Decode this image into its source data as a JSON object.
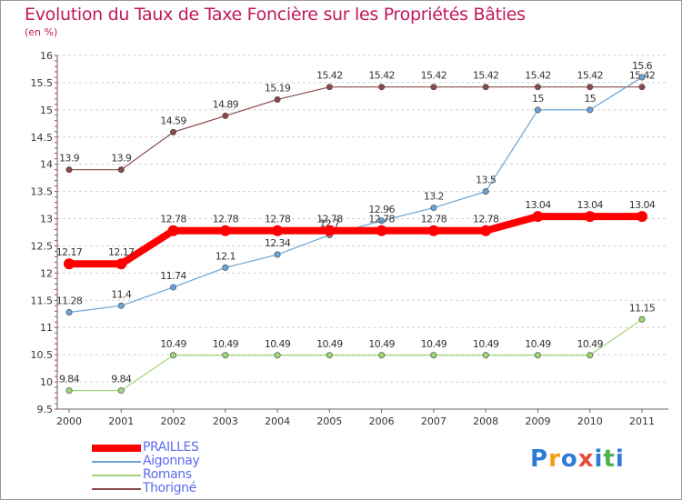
{
  "title": "Evolution du Taux de Taxe Foncière sur les Propriétés Bâties",
  "subtitle": "(en %)",
  "logo": {
    "letters": [
      "P",
      "r",
      "o",
      "x",
      "i",
      "t",
      "i"
    ],
    "colors": [
      "#2e7bd6",
      "#f39c12",
      "#2e7bd6",
      "#e74c3c",
      "#2e7bd6",
      "#4caf50",
      "#2e7bd6"
    ]
  },
  "chart_data": {
    "type": "line",
    "title": "Evolution du Taux de Taxe Foncière sur les Propriétés Bâties",
    "ylabel": "(en %)",
    "xlabel": "",
    "categories": [
      "2000",
      "2001",
      "2002",
      "2003",
      "2004",
      "2005",
      "2006",
      "2007",
      "2008",
      "2009",
      "2010",
      "2011"
    ],
    "ylim": [
      9.5,
      16
    ],
    "yticks": [
      "9.5",
      "10",
      "10.5",
      "11",
      "11.5",
      "12",
      "12.5",
      "13",
      "13.5",
      "14",
      "14.5",
      "15",
      "15.5",
      "16"
    ],
    "grid": "horizontal dashed",
    "series": [
      {
        "name": "PRAILLES",
        "color": "#ff0000",
        "width": 8,
        "values": [
          12.17,
          12.17,
          12.78,
          12.78,
          12.78,
          12.78,
          12.78,
          12.78,
          12.78,
          13.04,
          13.04,
          13.04
        ],
        "labels": [
          "12.17",
          "12.17",
          "12.78",
          "12.78",
          "12.78",
          "12.78",
          "12.78",
          "12.78",
          "12.78",
          "13.04",
          "13.04",
          "13.04"
        ]
      },
      {
        "name": "Aigonnay",
        "color": "#6aa3d5",
        "width": 1.2,
        "values": [
          11.28,
          11.4,
          11.74,
          12.1,
          12.34,
          12.7,
          12.96,
          13.2,
          13.5,
          15,
          15,
          15.6
        ],
        "labels": [
          "11.28",
          "11.4",
          "11.74",
          "12.1",
          "12.34",
          "12.7",
          "12.96",
          "13.2",
          "13.5",
          "15",
          "15",
          "15.6"
        ]
      },
      {
        "name": "Romans",
        "color": "#9fd67a",
        "width": 1.2,
        "values": [
          9.84,
          9.84,
          10.49,
          10.49,
          10.49,
          10.49,
          10.49,
          10.49,
          10.49,
          10.49,
          10.49,
          11.15
        ],
        "labels": [
          "9.84",
          "9.84",
          "10.49",
          "10.49",
          "10.49",
          "10.49",
          "10.49",
          "10.49",
          "10.49",
          "10.49",
          "10.49",
          "11.15"
        ]
      },
      {
        "name": "Thorigné",
        "color": "#8b4a4a",
        "width": 1.2,
        "values": [
          13.9,
          13.9,
          14.59,
          14.89,
          15.19,
          15.42,
          15.42,
          15.42,
          15.42,
          15.42,
          15.42,
          15.42
        ],
        "labels": [
          "13.9",
          "13.9",
          "14.59",
          "14.89",
          "15.19",
          "15.42",
          "15.42",
          "15.42",
          "15.42",
          "15.42",
          "15.42",
          "15.42"
        ]
      }
    ]
  }
}
